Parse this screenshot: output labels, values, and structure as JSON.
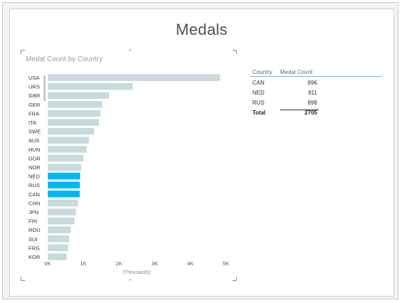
{
  "page_title": "Medals",
  "chart_data": {
    "type": "bar",
    "orientation": "horizontal",
    "title": "Medal Count by Country",
    "xlabel": "(Thousands)",
    "ylabel": "",
    "xlim": [
      0,
      5000
    ],
    "x_ticks": [
      "0K",
      "1K",
      "2K",
      "3K",
      "4K",
      "5K"
    ],
    "categories": [
      "USA",
      "URS",
      "GBR",
      "GER",
      "FRA",
      "ITA",
      "SWE",
      "AUS",
      "HUN",
      "GDR",
      "NOR",
      "NED",
      "RUS",
      "CAN",
      "CHN",
      "JPN",
      "FIN",
      "ROU",
      "SUI",
      "FRG",
      "KOR"
    ],
    "values": [
      4840,
      2380,
      1720,
      1530,
      1480,
      1440,
      1300,
      1150,
      1090,
      1000,
      940,
      911,
      898,
      896,
      850,
      790,
      750,
      650,
      600,
      570,
      530
    ],
    "highlighted": [
      "NED",
      "RUS",
      "CAN"
    ],
    "colors": {
      "bar": "#c8dadb",
      "highlight": "#01b8f0",
      "axis_text": "#555555"
    },
    "grid": false
  },
  "table": {
    "headers": [
      "Country",
      "Medal Count"
    ],
    "rows": [
      {
        "country": "CAN",
        "count": "896"
      },
      {
        "country": "NED",
        "count": "911"
      },
      {
        "country": "RUS",
        "count": "898"
      }
    ],
    "total_label": "Total",
    "total_value": "2705"
  }
}
